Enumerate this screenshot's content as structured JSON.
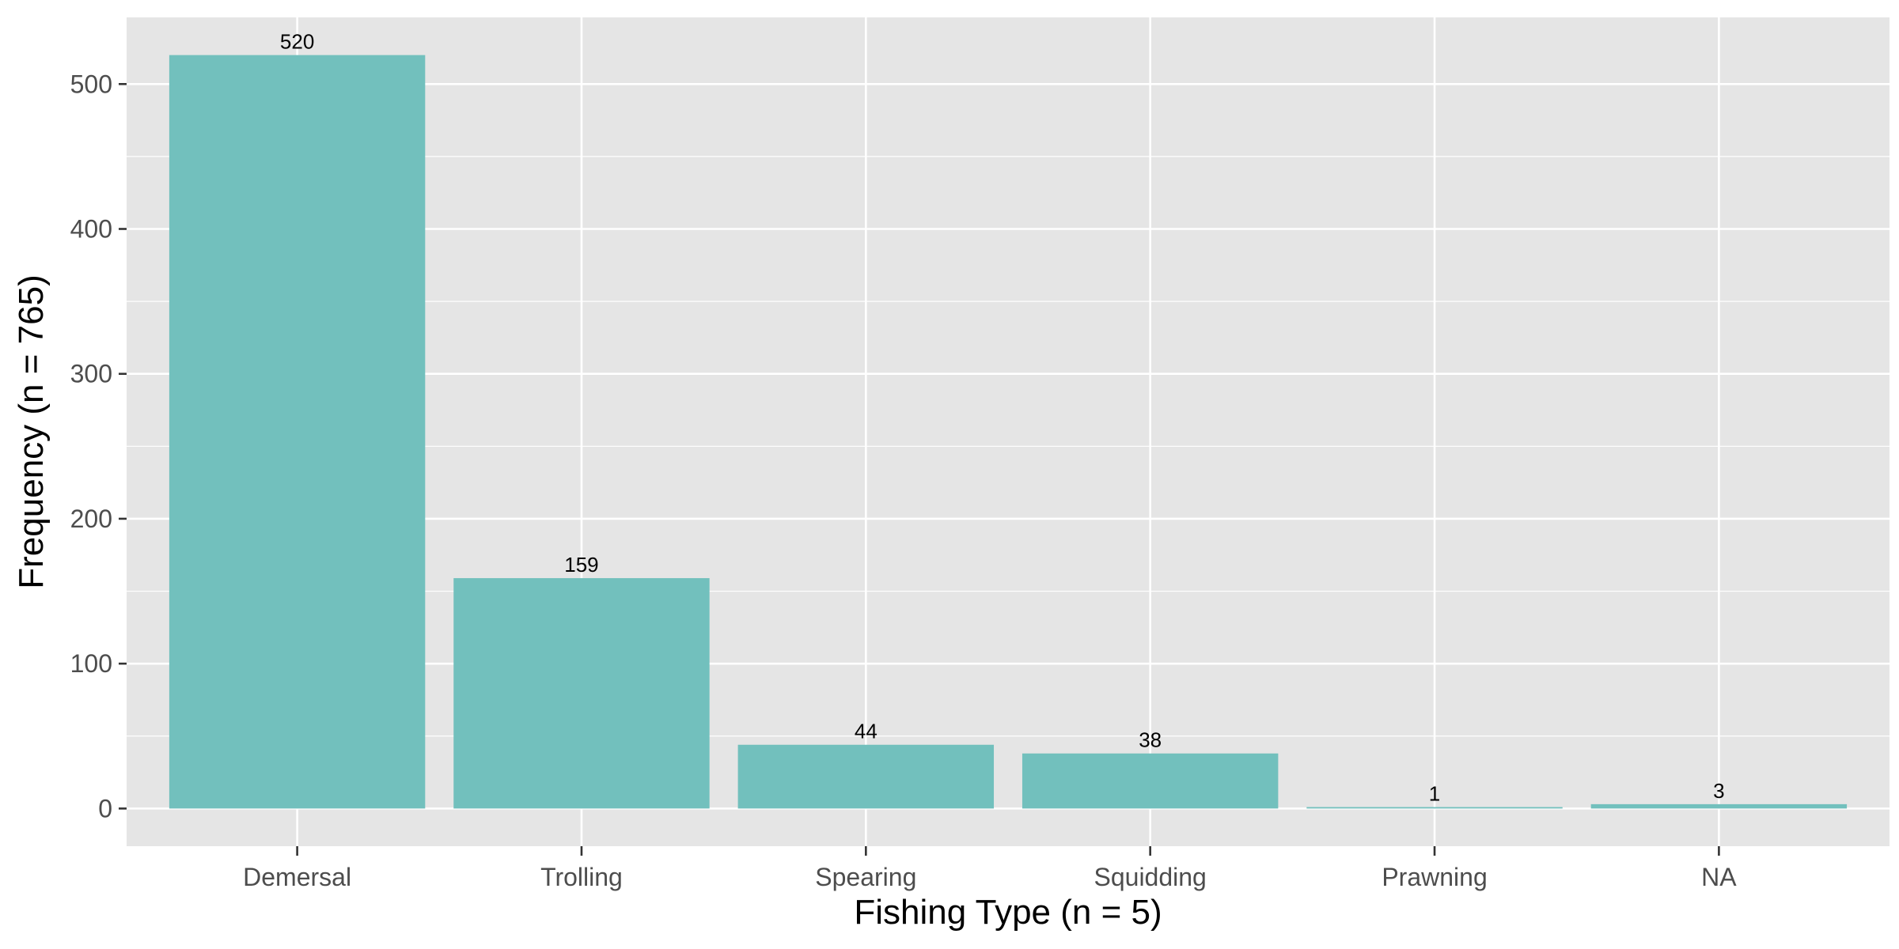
{
  "chart_data": {
    "type": "bar",
    "title": "",
    "xlabel": "Fishing Type (n = 5)",
    "ylabel": "Frequency (n = 765)",
    "categories": [
      "Demersal",
      "Trolling",
      "Spearing",
      "Squidding",
      "Prawning",
      "NA"
    ],
    "values": [
      520,
      159,
      44,
      38,
      1,
      3
    ],
    "data_labels": [
      "520",
      "159",
      "44",
      "38",
      "1",
      "3"
    ],
    "y_ticks": [
      0,
      100,
      200,
      300,
      400,
      500
    ],
    "y_tick_labels": [
      "0",
      "100",
      "200",
      "300",
      "400",
      "500"
    ],
    "ylim": [
      -26,
      546
    ],
    "grid": true,
    "legend": "none",
    "colors": {
      "bar": "#72c0bd",
      "panel_background": "#e5e5e5",
      "grid": "#ffffff",
      "tick_text": "#4d4d4d",
      "tick_mark": "#333333",
      "title_text": "#000000"
    }
  }
}
